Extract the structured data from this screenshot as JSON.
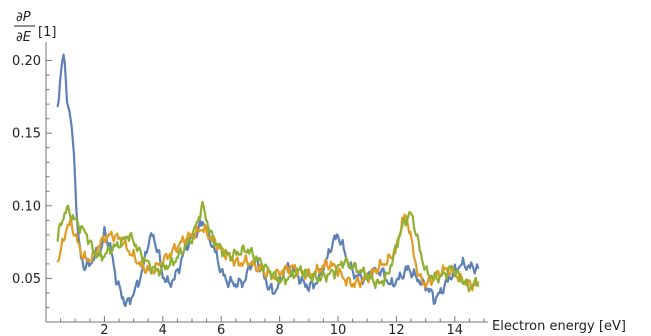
{
  "chart_data": {
    "type": "line",
    "xlabel": "Electron energy [eV]",
    "ylabel": {
      "numerator": "∂P",
      "denominator": "∂E",
      "unit": "[1]"
    },
    "xlim": [
      0,
      15
    ],
    "ylim": [
      0.02,
      0.21
    ],
    "x_ticks_major": [
      2,
      4,
      6,
      8,
      10,
      12,
      14
    ],
    "y_ticks_major": [
      0.05,
      0.1,
      0.15,
      0.2
    ],
    "y_tick_labels": [
      "0.05",
      "0.10",
      "0.15",
      "0.20"
    ],
    "grid": false,
    "legend": "none",
    "series": [
      {
        "color": "#5E81B5",
        "points": [
          [
            0.4,
            0.168
          ],
          [
            0.5,
            0.19
          ],
          [
            0.55,
            0.2
          ],
          [
            0.62,
            0.203
          ],
          [
            0.7,
            0.178
          ],
          [
            0.8,
            0.165
          ],
          [
            0.9,
            0.15
          ],
          [
            1.0,
            0.12
          ],
          [
            1.05,
            0.095
          ],
          [
            1.12,
            0.075
          ],
          [
            1.2,
            0.065
          ],
          [
            1.3,
            0.058
          ],
          [
            1.5,
            0.06
          ],
          [
            1.7,
            0.066
          ],
          [
            1.9,
            0.07
          ],
          [
            2.0,
            0.082
          ],
          [
            2.2,
            0.072
          ],
          [
            2.4,
            0.05
          ],
          [
            2.6,
            0.038
          ],
          [
            2.75,
            0.032
          ],
          [
            2.9,
            0.036
          ],
          [
            3.1,
            0.044
          ],
          [
            3.3,
            0.055
          ],
          [
            3.5,
            0.075
          ],
          [
            3.65,
            0.08
          ],
          [
            3.85,
            0.068
          ],
          [
            4.0,
            0.052
          ],
          [
            4.2,
            0.046
          ],
          [
            4.4,
            0.05
          ],
          [
            4.6,
            0.06
          ],
          [
            4.8,
            0.072
          ],
          [
            5.0,
            0.078
          ],
          [
            5.2,
            0.082
          ],
          [
            5.35,
            0.09
          ],
          [
            5.5,
            0.085
          ],
          [
            5.65,
            0.075
          ],
          [
            5.8,
            0.068
          ],
          [
            6.0,
            0.055
          ],
          [
            6.2,
            0.048
          ],
          [
            6.5,
            0.046
          ],
          [
            6.8,
            0.048
          ],
          [
            7.0,
            0.06
          ],
          [
            7.2,
            0.063
          ],
          [
            7.4,
            0.055
          ],
          [
            7.6,
            0.045
          ],
          [
            7.8,
            0.04
          ],
          [
            8.0,
            0.047
          ],
          [
            8.2,
            0.058
          ],
          [
            8.5,
            0.055
          ],
          [
            8.8,
            0.047
          ],
          [
            9.0,
            0.044
          ],
          [
            9.3,
            0.048
          ],
          [
            9.6,
            0.062
          ],
          [
            9.8,
            0.074
          ],
          [
            10.0,
            0.08
          ],
          [
            10.2,
            0.07
          ],
          [
            10.4,
            0.058
          ],
          [
            10.6,
            0.052
          ],
          [
            10.9,
            0.05
          ],
          [
            11.2,
            0.055
          ],
          [
            11.5,
            0.055
          ],
          [
            11.8,
            0.045
          ],
          [
            12.1,
            0.05
          ],
          [
            12.4,
            0.057
          ],
          [
            12.7,
            0.05
          ],
          [
            13.0,
            0.045
          ],
          [
            13.2,
            0.04
          ],
          [
            13.3,
            0.035
          ],
          [
            13.5,
            0.04
          ],
          [
            13.8,
            0.05
          ],
          [
            14.2,
            0.06
          ],
          [
            14.5,
            0.058
          ],
          [
            14.8,
            0.057
          ]
        ]
      },
      {
        "color": "#E19C24",
        "points": [
          [
            0.4,
            0.062
          ],
          [
            0.55,
            0.072
          ],
          [
            0.7,
            0.085
          ],
          [
            0.85,
            0.088
          ],
          [
            1.0,
            0.08
          ],
          [
            1.2,
            0.068
          ],
          [
            1.4,
            0.062
          ],
          [
            1.6,
            0.065
          ],
          [
            1.8,
            0.072
          ],
          [
            2.0,
            0.078
          ],
          [
            2.3,
            0.08
          ],
          [
            2.6,
            0.076
          ],
          [
            2.8,
            0.07
          ],
          [
            3.0,
            0.065
          ],
          [
            3.3,
            0.058
          ],
          [
            3.6,
            0.055
          ],
          [
            3.9,
            0.06
          ],
          [
            4.2,
            0.066
          ],
          [
            4.5,
            0.072
          ],
          [
            4.8,
            0.078
          ],
          [
            5.1,
            0.08
          ],
          [
            5.35,
            0.085
          ],
          [
            5.55,
            0.08
          ],
          [
            5.8,
            0.075
          ],
          [
            6.0,
            0.07
          ],
          [
            6.3,
            0.065
          ],
          [
            6.6,
            0.06
          ],
          [
            6.9,
            0.062
          ],
          [
            7.2,
            0.058
          ],
          [
            7.5,
            0.054
          ],
          [
            7.8,
            0.052
          ],
          [
            8.1,
            0.055
          ],
          [
            8.4,
            0.058
          ],
          [
            8.7,
            0.055
          ],
          [
            9.0,
            0.052
          ],
          [
            9.3,
            0.055
          ],
          [
            9.6,
            0.06
          ],
          [
            9.9,
            0.058
          ],
          [
            10.2,
            0.05
          ],
          [
            10.5,
            0.046
          ],
          [
            10.8,
            0.048
          ],
          [
            11.1,
            0.052
          ],
          [
            11.4,
            0.058
          ],
          [
            11.7,
            0.062
          ],
          [
            12.0,
            0.07
          ],
          [
            12.2,
            0.09
          ],
          [
            12.3,
            0.093
          ],
          [
            12.45,
            0.085
          ],
          [
            12.6,
            0.065
          ],
          [
            12.8,
            0.05
          ],
          [
            13.0,
            0.046
          ],
          [
            13.3,
            0.05
          ],
          [
            13.6,
            0.056
          ],
          [
            13.9,
            0.055
          ],
          [
            14.2,
            0.05
          ],
          [
            14.5,
            0.046
          ],
          [
            14.8,
            0.045
          ]
        ]
      },
      {
        "color": "#8FB032",
        "points": [
          [
            0.4,
            0.078
          ],
          [
            0.55,
            0.09
          ],
          [
            0.7,
            0.098
          ],
          [
            0.85,
            0.094
          ],
          [
            1.0,
            0.09
          ],
          [
            1.2,
            0.085
          ],
          [
            1.4,
            0.08
          ],
          [
            1.6,
            0.07
          ],
          [
            1.8,
            0.065
          ],
          [
            2.0,
            0.066
          ],
          [
            2.2,
            0.07
          ],
          [
            2.4,
            0.072
          ],
          [
            2.6,
            0.075
          ],
          [
            2.8,
            0.08
          ],
          [
            3.0,
            0.076
          ],
          [
            3.2,
            0.068
          ],
          [
            3.5,
            0.06
          ],
          [
            3.8,
            0.055
          ],
          [
            4.1,
            0.058
          ],
          [
            4.4,
            0.062
          ],
          [
            4.7,
            0.07
          ],
          [
            5.0,
            0.078
          ],
          [
            5.2,
            0.09
          ],
          [
            5.35,
            0.1
          ],
          [
            5.45,
            0.095
          ],
          [
            5.6,
            0.082
          ],
          [
            5.8,
            0.075
          ],
          [
            6.0,
            0.07
          ],
          [
            6.3,
            0.065
          ],
          [
            6.6,
            0.068
          ],
          [
            6.9,
            0.07
          ],
          [
            7.2,
            0.064
          ],
          [
            7.5,
            0.058
          ],
          [
            7.8,
            0.052
          ],
          [
            8.1,
            0.048
          ],
          [
            8.4,
            0.052
          ],
          [
            8.7,
            0.056
          ],
          [
            9.0,
            0.052
          ],
          [
            9.3,
            0.05
          ],
          [
            9.6,
            0.052
          ],
          [
            9.9,
            0.055
          ],
          [
            10.2,
            0.062
          ],
          [
            10.5,
            0.058
          ],
          [
            10.8,
            0.055
          ],
          [
            11.1,
            0.05
          ],
          [
            11.4,
            0.046
          ],
          [
            11.7,
            0.052
          ],
          [
            11.9,
            0.065
          ],
          [
            12.1,
            0.08
          ],
          [
            12.3,
            0.09
          ],
          [
            12.5,
            0.095
          ],
          [
            12.6,
            0.088
          ],
          [
            12.8,
            0.07
          ],
          [
            13.0,
            0.055
          ],
          [
            13.3,
            0.05
          ],
          [
            13.6,
            0.052
          ],
          [
            13.9,
            0.058
          ],
          [
            14.2,
            0.05
          ],
          [
            14.5,
            0.044
          ],
          [
            14.8,
            0.048
          ]
        ]
      }
    ]
  }
}
